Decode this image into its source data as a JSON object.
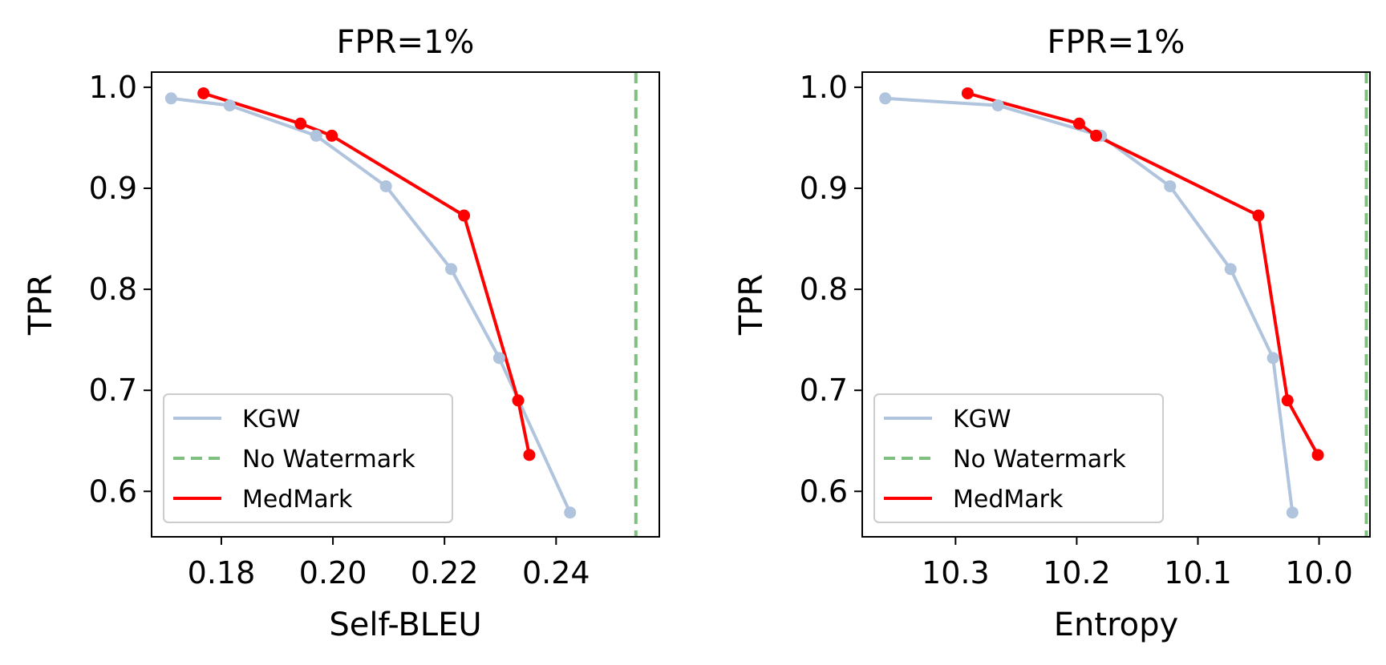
{
  "chart_data": [
    {
      "type": "line",
      "title": "FPR=1%",
      "xlabel": "Self-BLEU",
      "ylabel": "TPR",
      "xlim": [
        0.1675,
        0.2585
      ],
      "ylim": [
        0.555,
        1.015
      ],
      "x_reversed": false,
      "xticks": [
        0.18,
        0.2,
        0.22,
        0.24
      ],
      "xtick_labels": [
        "0.18",
        "0.20",
        "0.22",
        "0.24"
      ],
      "yticks": [
        0.6,
        0.7,
        0.8,
        0.9,
        1.0
      ],
      "ytick_labels": [
        "0.6",
        "0.7",
        "0.8",
        "0.9",
        "1.0"
      ],
      "legend_position": "lower-left",
      "series": [
        {
          "name": "KGW",
          "color": "#b0c4de",
          "style": "solid",
          "marker": true,
          "x": [
            0.171,
            0.1815,
            0.197,
            0.2095,
            0.2212,
            0.2298,
            0.2425
          ],
          "y": [
            0.989,
            0.982,
            0.952,
            0.902,
            0.82,
            0.732,
            0.579
          ]
        },
        {
          "name": "No Watermark",
          "color": "#7fbf7f",
          "style": "dashed",
          "marker": false,
          "vline_x": 0.2543
        },
        {
          "name": "MedMark",
          "color": "#ff0000",
          "style": "solid",
          "marker": true,
          "x": [
            0.1768,
            0.1942,
            0.1998,
            0.2235,
            0.2332,
            0.2352
          ],
          "y": [
            0.994,
            0.964,
            0.952,
            0.873,
            0.69,
            0.636
          ]
        }
      ]
    },
    {
      "type": "line",
      "title": "FPR=1%",
      "xlabel": "Entropy",
      "ylabel": "TPR",
      "xlim": [
        10.377,
        9.958
      ],
      "ylim": [
        0.555,
        1.015
      ],
      "x_reversed": true,
      "xticks": [
        10.3,
        10.2,
        10.1,
        10.0
      ],
      "xtick_labels": [
        "10.3",
        "10.2",
        "10.1",
        "10.0"
      ],
      "yticks": [
        0.6,
        0.7,
        0.8,
        0.9,
        1.0
      ],
      "ytick_labels": [
        "0.6",
        "0.7",
        "0.8",
        "0.9",
        "1.0"
      ],
      "legend_position": "lower-left",
      "series": [
        {
          "name": "KGW",
          "color": "#b0c4de",
          "style": "solid",
          "marker": true,
          "x": [
            10.358,
            10.265,
            10.18,
            10.123,
            10.073,
            10.038,
            10.022
          ],
          "y": [
            0.989,
            0.982,
            0.952,
            0.902,
            0.82,
            0.732,
            0.579
          ]
        },
        {
          "name": "No Watermark",
          "color": "#7fbf7f",
          "style": "dashed",
          "marker": false,
          "vline_x": 9.961
        },
        {
          "name": "MedMark",
          "color": "#ff0000",
          "style": "solid",
          "marker": true,
          "x": [
            10.29,
            10.198,
            10.184,
            10.05,
            10.026,
            10.001
          ],
          "y": [
            0.994,
            0.964,
            0.952,
            0.873,
            0.69,
            0.636
          ]
        }
      ]
    }
  ]
}
